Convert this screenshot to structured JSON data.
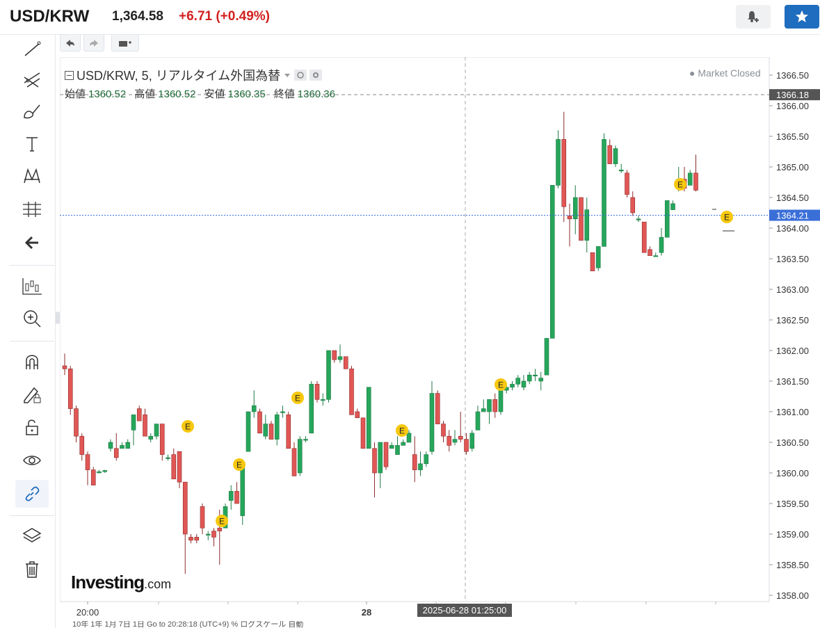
{
  "header": {
    "symbol": "USD/KRW",
    "price": "1,364.58",
    "change": "+6.71 (+0.49%)",
    "alert_icon": "bell-plus-icon",
    "star_icon": "star-icon"
  },
  "toolbar": {
    "tools": [
      "trend-line-icon",
      "pitchfork-icon",
      "brush-icon",
      "text-icon",
      "pattern-icon",
      "measure-icon",
      "back-arrow-icon",
      "chart-type-icon",
      "zoom-in-icon",
      "magnet-icon",
      "lock-draw-icon",
      "unlock-icon",
      "eye-icon",
      "link-icon",
      "layers-icon",
      "trash-icon"
    ]
  },
  "legend": {
    "title": "USD/KRW, 5, リアルタイム外国為替",
    "open_label": "始値",
    "open": "1360.52",
    "high_label": "高値",
    "high": "1360.52",
    "low_label": "安値",
    "low": "1360.35",
    "close_label": "終値",
    "close": "1360.36",
    "market_status": "Market Closed"
  },
  "watermark": {
    "brand": "Investing",
    "suffix": ".com"
  },
  "crosshair_label": "2025-06-28 01:25:00",
  "colors": {
    "up": "#26a65b",
    "down": "#e15755",
    "accent": "#1f6dbf",
    "change": "#d1211f"
  },
  "bottom_bar_text": "10年 1年 1月 7日 1日 Go to 20:28:18 (UTC+9) % ログスケール 自動",
  "chart_data": {
    "type": "candlestick",
    "y_ticks": [
      "1358.00",
      "1358.50",
      "1359.00",
      "1359.50",
      "1360.00",
      "1360.50",
      "1361.00",
      "1361.50",
      "1362.00",
      "1362.50",
      "1363.00",
      "1363.50",
      "1364.00",
      "1364.50",
      "1365.00",
      "1365.50",
      "1366.00",
      "1366.50"
    ],
    "ylim": [
      1357.94,
      1366.67
    ],
    "x_ticks": [
      "20:00",
      "28"
    ],
    "price_line": "1364.21",
    "high_line": "1366.18",
    "event_marker": "E",
    "ohlc": [
      [
        1361.75,
        1361.95,
        1361.6,
        1361.7
      ],
      [
        1361.7,
        1361.75,
        1360.95,
        1361.05
      ],
      [
        1361.05,
        1361.1,
        1360.5,
        1360.6
      ],
      [
        1360.6,
        1360.65,
        1360.2,
        1360.3
      ],
      [
        1360.3,
        1360.35,
        1359.8,
        1360.05
      ],
      [
        1360.05,
        1360.1,
        1359.82,
        1359.8
      ],
      [
        1360.0,
        1360.05,
        1360.0,
        1360.02
      ],
      [
        1360.02,
        1360.05,
        1360.0,
        1360.04
      ],
      [
        1360.4,
        1360.55,
        1360.35,
        1360.5
      ],
      [
        1360.4,
        1360.65,
        1360.2,
        1360.25
      ],
      [
        1360.4,
        1360.5,
        1360.4,
        1360.45
      ],
      [
        1360.4,
        1360.55,
        1360.4,
        1360.5
      ],
      [
        1360.7,
        1360.95,
        1360.45,
        1360.95
      ],
      [
        1361.05,
        1361.1,
        1360.85,
        1360.85
      ],
      [
        1360.95,
        1361.05,
        1360.6,
        1360.6
      ],
      [
        1360.55,
        1360.65,
        1360.5,
        1360.6
      ],
      [
        1360.6,
        1360.8,
        1360.55,
        1360.8
      ],
      [
        1360.8,
        1360.8,
        1360.2,
        1360.3
      ],
      [
        1360.25,
        1360.3,
        1360.2,
        1360.25
      ],
      [
        1360.3,
        1360.4,
        1359.9,
        1359.9
      ],
      [
        1360.35,
        1360.35,
        1359.75,
        1359.85
      ],
      [
        1359.85,
        1359.85,
        1358.35,
        1359.0
      ],
      [
        1358.95,
        1359.0,
        1358.85,
        1358.9
      ],
      [
        1358.95,
        1359.0,
        1358.85,
        1358.9
      ],
      [
        1359.45,
        1359.5,
        1359.0,
        1359.1
      ],
      [
        1359.0,
        1359.05,
        1358.9,
        1359.0
      ],
      [
        1359.05,
        1359.1,
        1358.8,
        1358.95
      ],
      [
        1359.1,
        1359.4,
        1358.5,
        1359.05
      ],
      [
        1359.1,
        1359.5,
        1359.1,
        1359.45
      ],
      [
        1359.55,
        1359.8,
        1359.4,
        1359.7
      ],
      [
        1359.7,
        1359.85,
        1359.5,
        1359.5
      ],
      [
        1359.3,
        1360.05,
        1359.15,
        1360.1
      ],
      [
        1360.35,
        1361.0,
        1360.35,
        1361.0
      ],
      [
        1361.0,
        1361.35,
        1360.9,
        1361.1
      ],
      [
        1361.0,
        1361.05,
        1360.7,
        1360.65
      ],
      [
        1360.6,
        1360.95,
        1360.55,
        1360.8
      ],
      [
        1360.8,
        1360.85,
        1360.55,
        1360.55
      ],
      [
        1360.55,
        1361.0,
        1360.45,
        1360.95
      ],
      [
        1361.0,
        1361.1,
        1360.9,
        1361.0
      ],
      [
        1360.95,
        1361.0,
        1360.4,
        1360.4
      ],
      [
        1360.4,
        1360.5,
        1359.95,
        1359.95
      ],
      [
        1360.0,
        1360.6,
        1359.95,
        1360.55
      ],
      [
        1360.55,
        1360.6,
        1360.5,
        1360.55
      ],
      [
        1360.65,
        1361.5,
        1360.65,
        1361.45
      ],
      [
        1361.45,
        1361.5,
        1361.15,
        1361.2
      ],
      [
        1361.2,
        1361.3,
        1361.1,
        1361.2
      ],
      [
        1361.2,
        1362.0,
        1361.15,
        1362.0
      ],
      [
        1362.0,
        1362.0,
        1361.8,
        1361.85
      ],
      [
        1361.85,
        1362.1,
        1361.8,
        1361.9
      ],
      [
        1361.9,
        1361.9,
        1361.7,
        1361.7
      ],
      [
        1361.7,
        1361.75,
        1360.95,
        1360.95
      ],
      [
        1361.0,
        1361.05,
        1360.9,
        1360.9
      ],
      [
        1360.9,
        1360.9,
        1360.4,
        1360.4
      ],
      [
        1360.4,
        1361.4,
        1360.4,
        1361.4
      ],
      [
        1360.4,
        1360.5,
        1359.6,
        1360.0
      ],
      [
        1360.0,
        1360.5,
        1359.75,
        1360.5
      ],
      [
        1360.5,
        1360.5,
        1360.05,
        1360.1
      ],
      [
        1360.4,
        1360.5,
        1360.4,
        1360.45
      ],
      [
        1360.3,
        1360.6,
        1360.3,
        1360.45
      ],
      [
        1360.45,
        1360.55,
        1360.45,
        1360.5
      ],
      [
        1360.5,
        1360.7,
        1360.5,
        1360.65
      ],
      [
        1360.3,
        1360.6,
        1359.85,
        1360.05
      ],
      [
        1360.05,
        1360.35,
        1359.95,
        1360.15
      ],
      [
        1360.15,
        1360.35,
        1360.1,
        1360.3
      ],
      [
        1360.35,
        1361.5,
        1360.3,
        1361.3
      ],
      [
        1361.3,
        1361.35,
        1360.8,
        1360.8
      ],
      [
        1360.8,
        1360.85,
        1360.5,
        1360.6
      ],
      [
        1360.6,
        1360.7,
        1360.35,
        1360.45
      ],
      [
        1360.5,
        1360.7,
        1360.45,
        1360.55
      ],
      [
        1360.6,
        1361.0,
        1360.5,
        1360.55
      ],
      [
        1360.55,
        1360.65,
        1360.3,
        1360.35
      ],
      [
        1360.4,
        1360.7,
        1360.35,
        1360.65
      ],
      [
        1360.7,
        1361.1,
        1360.7,
        1361.0
      ],
      [
        1361.0,
        1361.2,
        1361.0,
        1361.05
      ],
      [
        1361.0,
        1361.2,
        1360.8,
        1361.2
      ],
      [
        1361.2,
        1361.3,
        1360.9,
        1361.0
      ],
      [
        1361.0,
        1361.4,
        1360.95,
        1361.35
      ],
      [
        1361.35,
        1361.45,
        1361.3,
        1361.4
      ],
      [
        1361.4,
        1361.5,
        1361.35,
        1361.45
      ],
      [
        1361.45,
        1361.6,
        1361.4,
        1361.55
      ],
      [
        1361.4,
        1361.6,
        1361.35,
        1361.5
      ],
      [
        1361.5,
        1361.65,
        1361.45,
        1361.6
      ],
      [
        1361.6,
        1361.7,
        1361.5,
        1361.6
      ],
      [
        1361.5,
        1361.65,
        1361.35,
        1361.55
      ],
      [
        1361.6,
        1362.2,
        1361.6,
        1362.2
      ],
      [
        1362.2,
        1364.7,
        1362.2,
        1364.7
      ],
      [
        1364.7,
        1365.6,
        1364.65,
        1365.45
      ],
      [
        1365.45,
        1365.9,
        1364.1,
        1364.35
      ],
      [
        1364.2,
        1364.4,
        1363.7,
        1364.15
      ],
      [
        1364.15,
        1364.7,
        1363.9,
        1364.5
      ],
      [
        1364.5,
        1364.5,
        1363.8,
        1363.8
      ],
      [
        1363.8,
        1364.5,
        1363.6,
        1364.3
      ],
      [
        1363.6,
        1363.6,
        1363.3,
        1363.3
      ],
      [
        1363.35,
        1363.7,
        1363.3,
        1363.7
      ],
      [
        1363.7,
        1365.55,
        1363.7,
        1365.45
      ],
      [
        1365.35,
        1365.45,
        1365.05,
        1365.05
      ],
      [
        1365.05,
        1365.35,
        1365.0,
        1365.3
      ],
      [
        1364.95,
        1365.05,
        1364.9,
        1364.95
      ],
      [
        1364.9,
        1364.95,
        1364.5,
        1364.55
      ],
      [
        1364.5,
        1364.6,
        1364.2,
        1364.25
      ],
      [
        1364.15,
        1364.2,
        1364.1,
        1364.15
      ],
      [
        1364.1,
        1364.1,
        1363.6,
        1363.6
      ],
      [
        1363.65,
        1363.7,
        1363.55,
        1363.55
      ],
      [
        1363.55,
        1363.6,
        1363.55,
        1363.55
      ],
      [
        1363.6,
        1364.0,
        1363.55,
        1363.85
      ],
      [
        1363.85,
        1364.45,
        1363.85,
        1364.45
      ],
      [
        1364.3,
        1364.45,
        1364.3,
        1364.4
      ],
      [
        1364.8,
        1365.0,
        1364.6,
        1364.8
      ],
      [
        1364.8,
        1365.0,
        1364.6,
        1364.65
      ],
      [
        1364.7,
        1364.95,
        1364.7,
        1364.9
      ],
      [
        1364.9,
        1365.2,
        1364.6,
        1364.62
      ]
    ]
  }
}
